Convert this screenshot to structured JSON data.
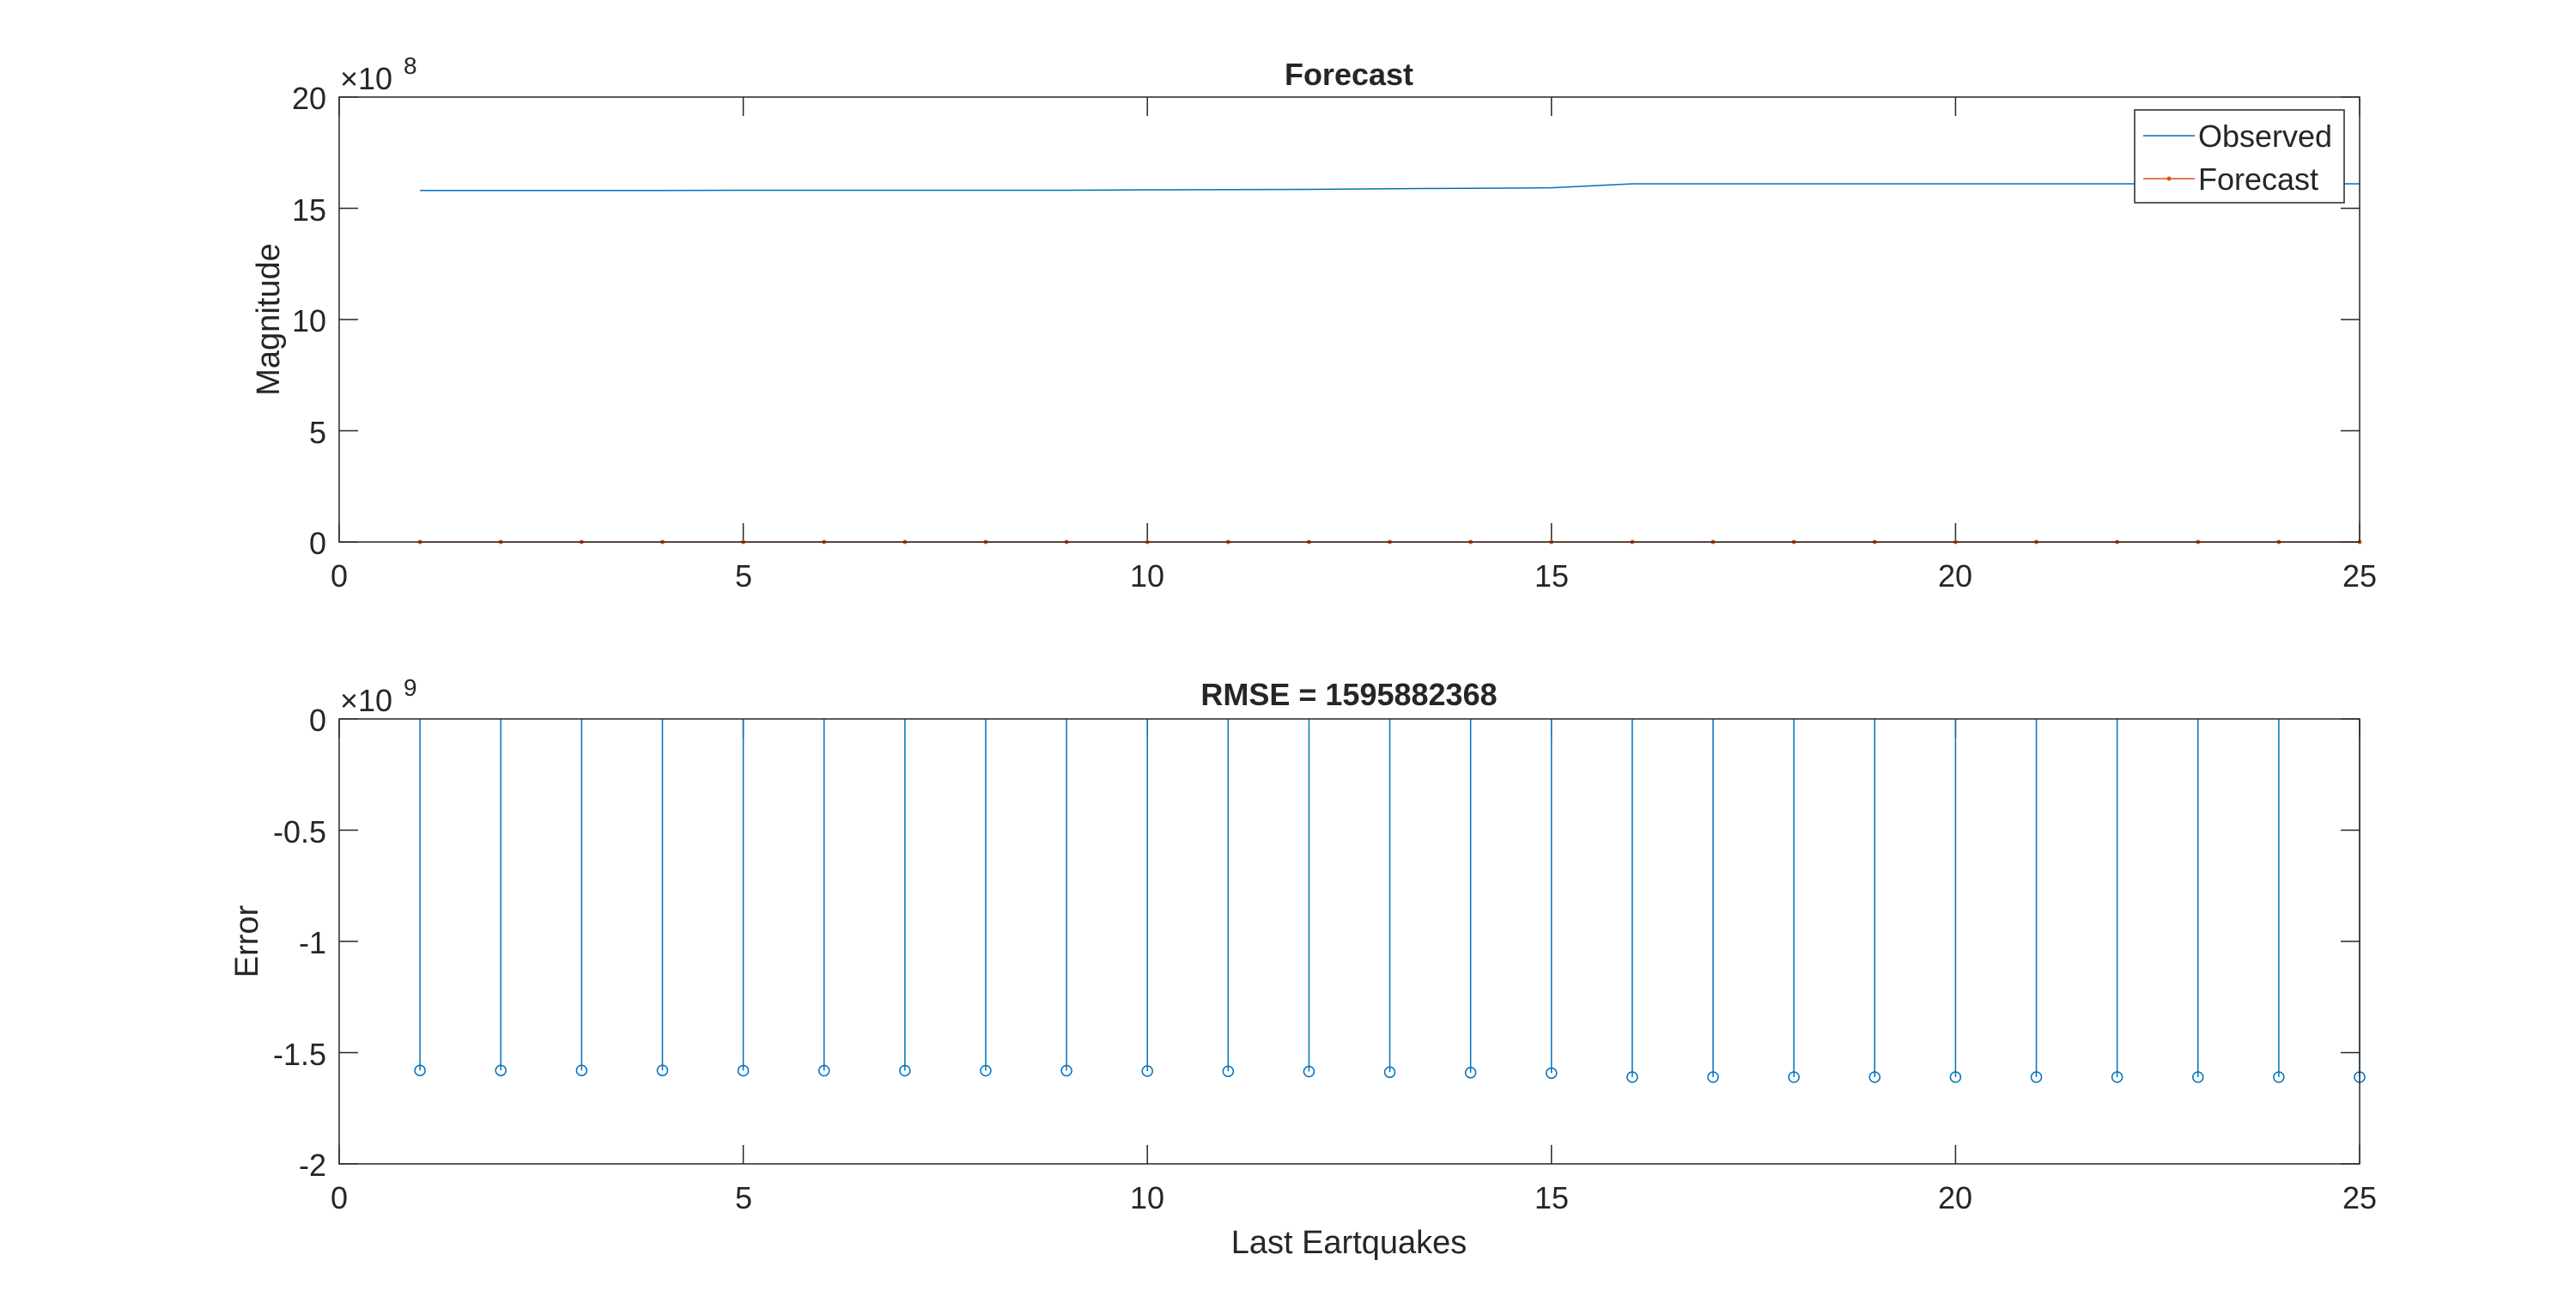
{
  "chart_data": [
    {
      "type": "line",
      "title": "Forecast",
      "xlabel": "",
      "ylabel": "Magnitude",
      "xlim": [
        0,
        25
      ],
      "ylim": [
        0,
        20
      ],
      "y_exponent_label": "×10",
      "y_exponent": "8",
      "x_ticks": [
        "0",
        "5",
        "10",
        "15",
        "20",
        "25"
      ],
      "y_ticks": [
        "0",
        "5",
        "10",
        "15",
        "20"
      ],
      "legend_position": "top-right",
      "grid": false,
      "series": [
        {
          "name": "Observed",
          "color": "#0072BD",
          "marker": "none",
          "x": [
            1,
            2,
            3,
            4,
            5,
            6,
            7,
            8,
            9,
            10,
            11,
            12,
            13,
            14,
            15,
            16,
            17,
            18,
            19,
            20,
            21,
            22,
            23,
            24,
            25
          ],
          "y": [
            15.8,
            15.8,
            15.8,
            15.8,
            15.81,
            15.81,
            15.81,
            15.81,
            15.81,
            15.83,
            15.84,
            15.85,
            15.88,
            15.9,
            15.92,
            16.1,
            16.1,
            16.1,
            16.1,
            16.1,
            16.1,
            16.1,
            16.1,
            16.1,
            16.1
          ]
        },
        {
          "name": "Forecast",
          "color": "#D95319",
          "marker": "dot",
          "x": [
            1,
            2,
            3,
            4,
            5,
            6,
            7,
            8,
            9,
            10,
            11,
            12,
            13,
            14,
            15,
            16,
            17,
            18,
            19,
            20,
            21,
            22,
            23,
            24,
            25
          ],
          "y": [
            0,
            0,
            0,
            0,
            0,
            0,
            0,
            0,
            0,
            0,
            0,
            0,
            0,
            0,
            0,
            0,
            0,
            0,
            0,
            0,
            0,
            0,
            0,
            0,
            0
          ]
        }
      ]
    },
    {
      "type": "stem",
      "title": "RMSE = 1595882368",
      "xlabel": "Last Eartquakes",
      "ylabel": "Error",
      "xlim": [
        0,
        25
      ],
      "ylim": [
        -2,
        0
      ],
      "y_exponent_label": "×10",
      "y_exponent": "9",
      "x_ticks": [
        "0",
        "5",
        "10",
        "15",
        "20",
        "25"
      ],
      "y_ticks": [
        "0",
        "-0.5",
        "-1",
        "-1.5",
        "-2"
      ],
      "grid": false,
      "series": [
        {
          "color": "#0072BD",
          "marker": "circle",
          "x": [
            1,
            2,
            3,
            4,
            5,
            6,
            7,
            8,
            9,
            10,
            11,
            12,
            13,
            14,
            15,
            16,
            17,
            18,
            19,
            20,
            21,
            22,
            23,
            24,
            25
          ],
          "y": [
            -1.58,
            -1.58,
            -1.58,
            -1.58,
            -1.581,
            -1.581,
            -1.581,
            -1.581,
            -1.581,
            -1.583,
            -1.584,
            -1.585,
            -1.588,
            -1.59,
            -1.592,
            -1.61,
            -1.61,
            -1.61,
            -1.61,
            -1.61,
            -1.61,
            -1.61,
            -1.61,
            -1.61,
            -1.61
          ]
        }
      ]
    }
  ]
}
